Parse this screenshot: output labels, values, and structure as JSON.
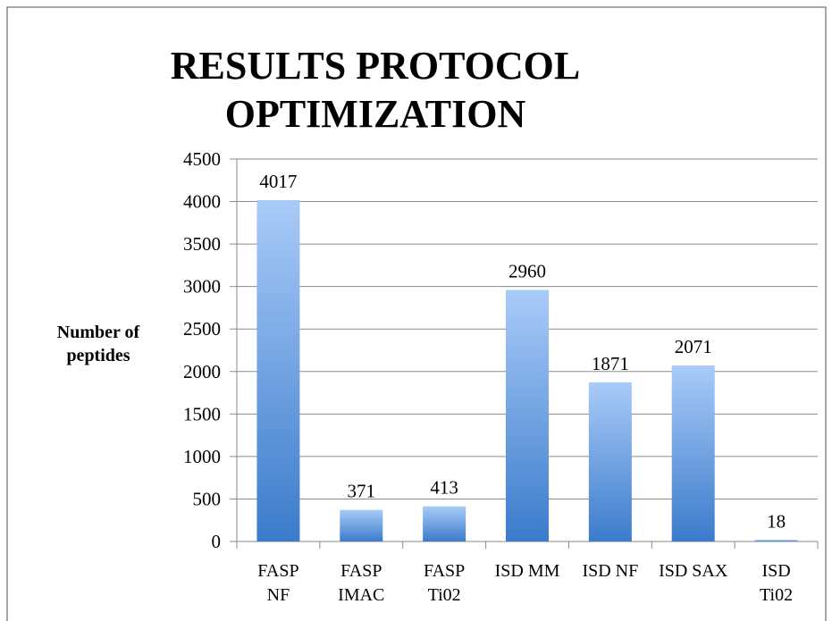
{
  "chart_data": {
    "type": "bar",
    "title": "RESULTS PROTOCOL\nOPTIMIZATION",
    "y_label": "Number of\npeptides",
    "categories": [
      "FASP\nNF",
      "FASP\nIMAC",
      "FASP\nTi02",
      "ISD MM",
      "ISD NF",
      "ISD SAX",
      "ISD\nTi02"
    ],
    "values": [
      4017,
      371,
      413,
      2960,
      1871,
      2071,
      18
    ],
    "color": [
      "#a9cbf8",
      "#3b7bcb"
    ],
    "ylim": [
      0,
      4500
    ],
    "yticks": [
      0,
      500,
      1000,
      1500,
      2000,
      2500,
      3000,
      3500,
      4000,
      4500
    ],
    "grid": true
  }
}
